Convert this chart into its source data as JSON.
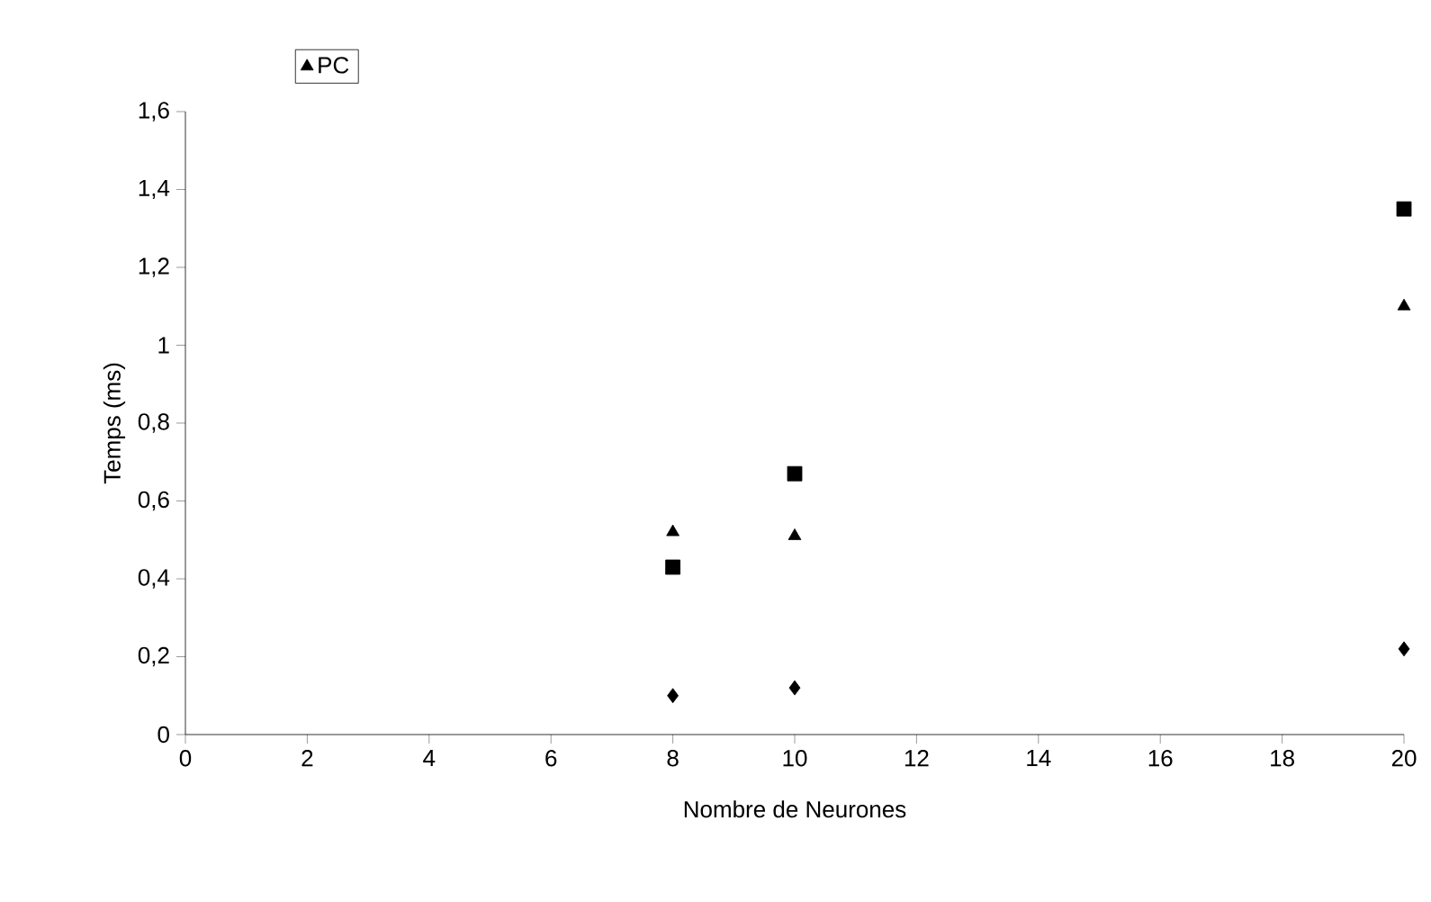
{
  "chart_data": {
    "type": "scatter",
    "xlabel": "Nombre de Neurones",
    "ylabel": "Temps (ms)",
    "xlim": [
      0,
      20
    ],
    "xticks": [
      0,
      2,
      4,
      6,
      8,
      10,
      12,
      14,
      16,
      18,
      20
    ],
    "ylim": [
      0,
      1.6
    ],
    "yticks": [
      0,
      {
        "value": 0.2,
        "label": "0,2"
      },
      {
        "value": 0.4,
        "label": "0,4"
      },
      {
        "value": 0.6,
        "label": "0,6"
      },
      {
        "value": 0.8,
        "label": "0,8"
      },
      1,
      {
        "value": 1.2,
        "label": "1,2"
      },
      {
        "value": 1.4,
        "label": "1,4"
      },
      {
        "value": 1.6,
        "label": "1,6"
      }
    ],
    "x": [
      8,
      10,
      20
    ],
    "series": [
      {
        "color": "#000000",
        "marker": "diamond",
        "values": [
          0.1,
          0.12,
          0.22
        ]
      },
      {
        "color": "#000000",
        "marker": "square",
        "values": [
          0.43,
          0.67,
          1.35
        ]
      },
      {
        "name": "PC",
        "color": "#000000",
        "marker": "triangle",
        "values": [
          0.52,
          0.51,
          1.1
        ]
      }
    ],
    "grid": false,
    "legend": "top left"
  }
}
